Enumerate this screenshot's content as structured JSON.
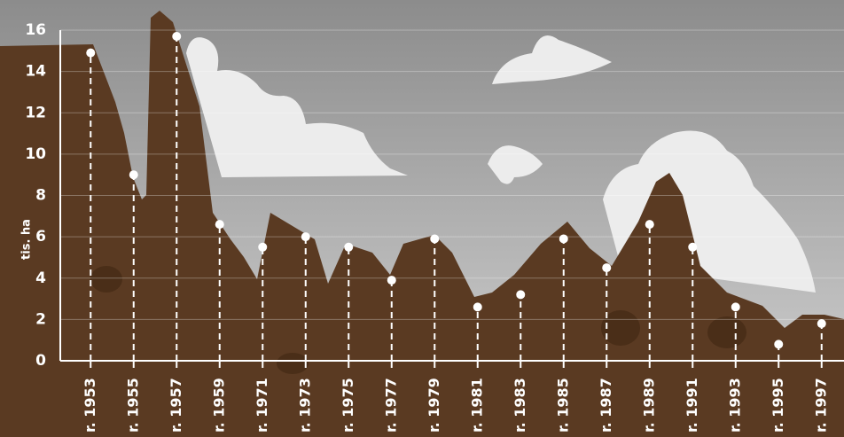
{
  "chart_data": {
    "type": "lollipop",
    "y_label": "tis. ha",
    "categories": [
      "r. 1953",
      "r. 1955",
      "r. 1957",
      "r. 1959",
      "r. 1971",
      "r. 1973",
      "r. 1975",
      "r. 1977",
      "r. 1979",
      "r. 1981",
      "r. 1983",
      "r. 1985",
      "r. 1987",
      "r. 1989",
      "r. 1991",
      "r. 1993",
      "r. 1995",
      "r. 1997"
    ],
    "values": [
      14.9,
      9.0,
      15.7,
      6.6,
      5.5,
      6.0,
      5.5,
      3.9,
      5.9,
      2.6,
      3.2,
      5.9,
      4.5,
      6.6,
      5.5,
      2.6,
      0.8,
      1.8
    ],
    "color": "#ffffff",
    "ylim": [
      0,
      16
    ],
    "yticks": [
      0,
      2,
      4,
      6,
      8,
      10,
      12,
      14,
      16
    ],
    "grid": true
  }
}
